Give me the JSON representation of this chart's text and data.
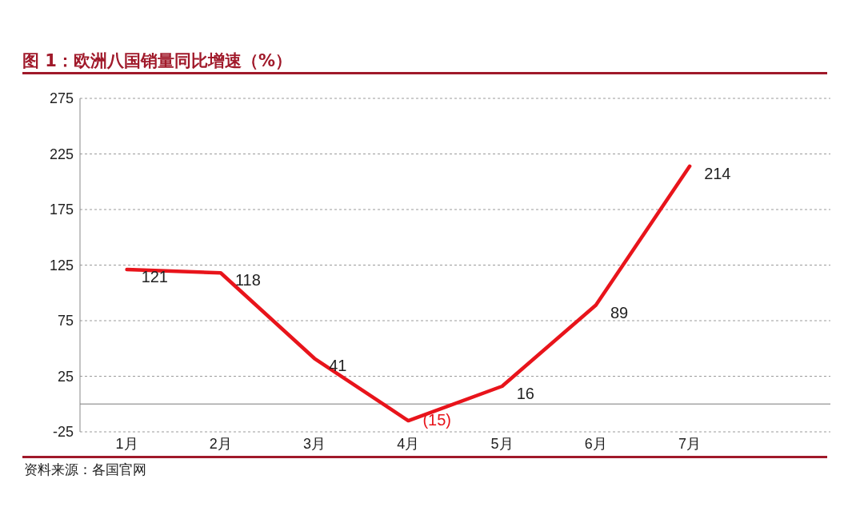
{
  "chart_data": {
    "type": "line",
    "title": "图 1：欧洲八国销量同比增速（%）",
    "categories": [
      "1月",
      "2月",
      "3月",
      "4月",
      "5月",
      "6月",
      "7月",
      null
    ],
    "series": [
      {
        "color": "#e8141b",
        "values": [
          121,
          118,
          41,
          -15,
          16,
          89,
          214,
          null
        ]
      }
    ],
    "value_labels": [
      "121",
      "118",
      "41",
      "(15)",
      "16",
      "89",
      "214",
      null
    ],
    "ylim": [
      -25,
      275
    ],
    "yticks": [
      -25,
      25,
      75,
      125,
      175,
      225,
      275
    ],
    "grid": "y",
    "marker": "none",
    "line_style": "solid",
    "ref_lines": [
      {
        "axis": "y",
        "value": 0,
        "color": "#a6a6a6"
      }
    ],
    "annotations": [
      "资料来源：各国官网"
    ]
  }
}
